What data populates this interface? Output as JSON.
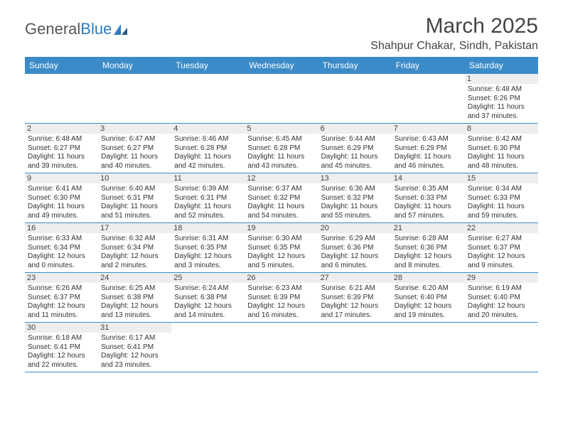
{
  "logo": {
    "text1": "General",
    "text2": "Blue"
  },
  "title": "March 2025",
  "location": "Shahpur Chakar, Sindh, Pakistan",
  "colors": {
    "header_bg": "#3b8bc8",
    "header_text": "#ffffff",
    "daynum_bg": "#eeeeee",
    "border": "#3b8bc8",
    "title_color": "#444444",
    "info_color": "#333333",
    "logo_gray": "#555555",
    "logo_blue": "#2f7bbf"
  },
  "day_names": [
    "Sunday",
    "Monday",
    "Tuesday",
    "Wednesday",
    "Thursday",
    "Friday",
    "Saturday"
  ],
  "weeks": [
    [
      null,
      null,
      null,
      null,
      null,
      null,
      {
        "n": "1",
        "sr": "Sunrise: 6:48 AM",
        "ss": "Sunset: 6:26 PM",
        "dl": "Daylight: 11 hours and 37 minutes."
      }
    ],
    [
      {
        "n": "2",
        "sr": "Sunrise: 6:48 AM",
        "ss": "Sunset: 6:27 PM",
        "dl": "Daylight: 11 hours and 39 minutes."
      },
      {
        "n": "3",
        "sr": "Sunrise: 6:47 AM",
        "ss": "Sunset: 6:27 PM",
        "dl": "Daylight: 11 hours and 40 minutes."
      },
      {
        "n": "4",
        "sr": "Sunrise: 6:46 AM",
        "ss": "Sunset: 6:28 PM",
        "dl": "Daylight: 11 hours and 42 minutes."
      },
      {
        "n": "5",
        "sr": "Sunrise: 6:45 AM",
        "ss": "Sunset: 6:28 PM",
        "dl": "Daylight: 11 hours and 43 minutes."
      },
      {
        "n": "6",
        "sr": "Sunrise: 6:44 AM",
        "ss": "Sunset: 6:29 PM",
        "dl": "Daylight: 11 hours and 45 minutes."
      },
      {
        "n": "7",
        "sr": "Sunrise: 6:43 AM",
        "ss": "Sunset: 6:29 PM",
        "dl": "Daylight: 11 hours and 46 minutes."
      },
      {
        "n": "8",
        "sr": "Sunrise: 6:42 AM",
        "ss": "Sunset: 6:30 PM",
        "dl": "Daylight: 11 hours and 48 minutes."
      }
    ],
    [
      {
        "n": "9",
        "sr": "Sunrise: 6:41 AM",
        "ss": "Sunset: 6:30 PM",
        "dl": "Daylight: 11 hours and 49 minutes."
      },
      {
        "n": "10",
        "sr": "Sunrise: 6:40 AM",
        "ss": "Sunset: 6:31 PM",
        "dl": "Daylight: 11 hours and 51 minutes."
      },
      {
        "n": "11",
        "sr": "Sunrise: 6:39 AM",
        "ss": "Sunset: 6:31 PM",
        "dl": "Daylight: 11 hours and 52 minutes."
      },
      {
        "n": "12",
        "sr": "Sunrise: 6:37 AM",
        "ss": "Sunset: 6:32 PM",
        "dl": "Daylight: 11 hours and 54 minutes."
      },
      {
        "n": "13",
        "sr": "Sunrise: 6:36 AM",
        "ss": "Sunset: 6:32 PM",
        "dl": "Daylight: 11 hours and 55 minutes."
      },
      {
        "n": "14",
        "sr": "Sunrise: 6:35 AM",
        "ss": "Sunset: 6:33 PM",
        "dl": "Daylight: 11 hours and 57 minutes."
      },
      {
        "n": "15",
        "sr": "Sunrise: 6:34 AM",
        "ss": "Sunset: 6:33 PM",
        "dl": "Daylight: 11 hours and 59 minutes."
      }
    ],
    [
      {
        "n": "16",
        "sr": "Sunrise: 6:33 AM",
        "ss": "Sunset: 6:34 PM",
        "dl": "Daylight: 12 hours and 0 minutes."
      },
      {
        "n": "17",
        "sr": "Sunrise: 6:32 AM",
        "ss": "Sunset: 6:34 PM",
        "dl": "Daylight: 12 hours and 2 minutes."
      },
      {
        "n": "18",
        "sr": "Sunrise: 6:31 AM",
        "ss": "Sunset: 6:35 PM",
        "dl": "Daylight: 12 hours and 3 minutes."
      },
      {
        "n": "19",
        "sr": "Sunrise: 6:30 AM",
        "ss": "Sunset: 6:35 PM",
        "dl": "Daylight: 12 hours and 5 minutes."
      },
      {
        "n": "20",
        "sr": "Sunrise: 6:29 AM",
        "ss": "Sunset: 6:36 PM",
        "dl": "Daylight: 12 hours and 6 minutes."
      },
      {
        "n": "21",
        "sr": "Sunrise: 6:28 AM",
        "ss": "Sunset: 6:36 PM",
        "dl": "Daylight: 12 hours and 8 minutes."
      },
      {
        "n": "22",
        "sr": "Sunrise: 6:27 AM",
        "ss": "Sunset: 6:37 PM",
        "dl": "Daylight: 12 hours and 9 minutes."
      }
    ],
    [
      {
        "n": "23",
        "sr": "Sunrise: 6:26 AM",
        "ss": "Sunset: 6:37 PM",
        "dl": "Daylight: 12 hours and 11 minutes."
      },
      {
        "n": "24",
        "sr": "Sunrise: 6:25 AM",
        "ss": "Sunset: 6:38 PM",
        "dl": "Daylight: 12 hours and 13 minutes."
      },
      {
        "n": "25",
        "sr": "Sunrise: 6:24 AM",
        "ss": "Sunset: 6:38 PM",
        "dl": "Daylight: 12 hours and 14 minutes."
      },
      {
        "n": "26",
        "sr": "Sunrise: 6:23 AM",
        "ss": "Sunset: 6:39 PM",
        "dl": "Daylight: 12 hours and 16 minutes."
      },
      {
        "n": "27",
        "sr": "Sunrise: 6:21 AM",
        "ss": "Sunset: 6:39 PM",
        "dl": "Daylight: 12 hours and 17 minutes."
      },
      {
        "n": "28",
        "sr": "Sunrise: 6:20 AM",
        "ss": "Sunset: 6:40 PM",
        "dl": "Daylight: 12 hours and 19 minutes."
      },
      {
        "n": "29",
        "sr": "Sunrise: 6:19 AM",
        "ss": "Sunset: 6:40 PM",
        "dl": "Daylight: 12 hours and 20 minutes."
      }
    ],
    [
      {
        "n": "30",
        "sr": "Sunrise: 6:18 AM",
        "ss": "Sunset: 6:41 PM",
        "dl": "Daylight: 12 hours and 22 minutes."
      },
      {
        "n": "31",
        "sr": "Sunrise: 6:17 AM",
        "ss": "Sunset: 6:41 PM",
        "dl": "Daylight: 12 hours and 23 minutes."
      },
      null,
      null,
      null,
      null,
      null
    ]
  ]
}
